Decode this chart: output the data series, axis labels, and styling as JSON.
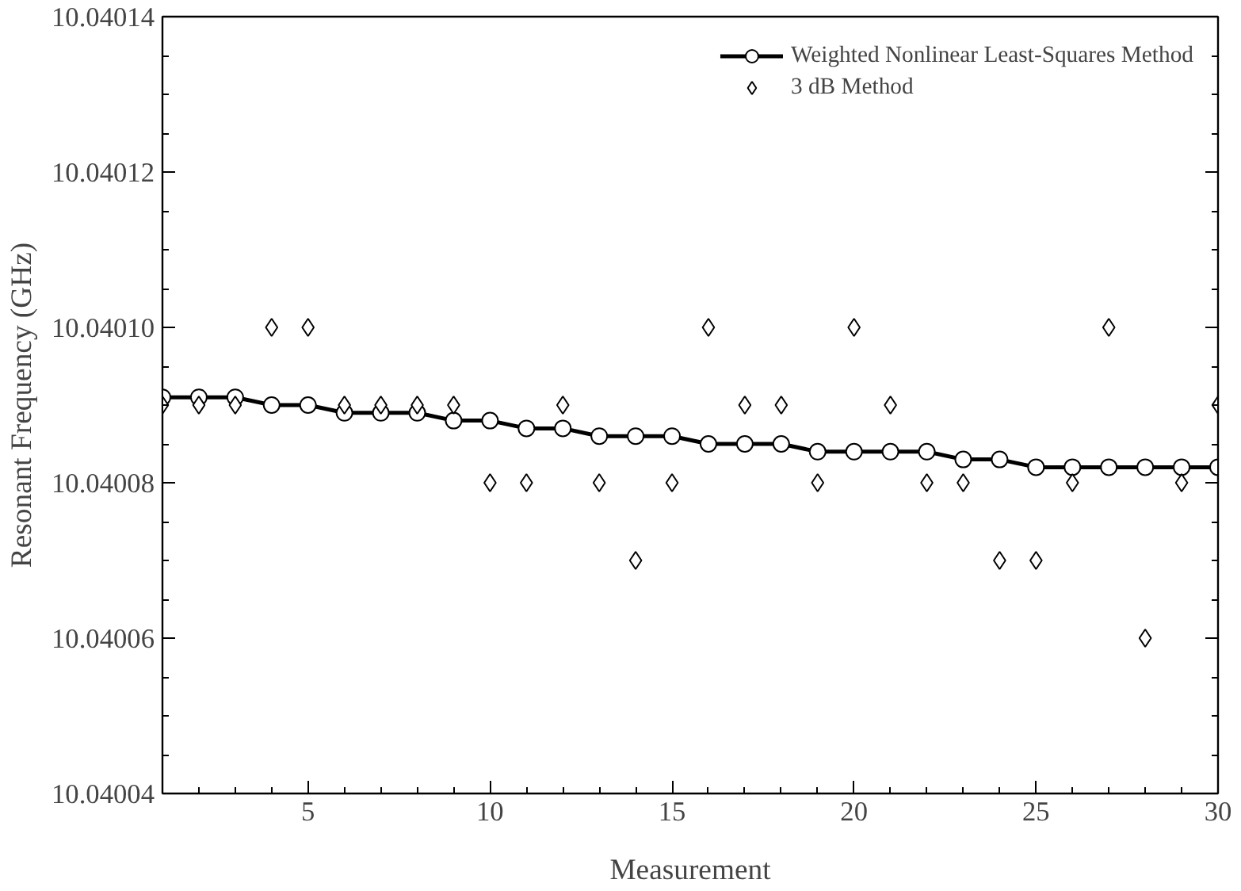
{
  "chart_data": {
    "type": "line",
    "xlabel": "Measurement",
    "ylabel": "Resonant Frequency (GHz)",
    "x": [
      1,
      2,
      3,
      4,
      5,
      6,
      7,
      8,
      9,
      10,
      11,
      12,
      13,
      14,
      15,
      16,
      17,
      18,
      19,
      20,
      21,
      22,
      23,
      24,
      25,
      26,
      27,
      28,
      29,
      30
    ],
    "series": [
      {
        "name": "Weighted Nonlinear Least-Squares Method",
        "marker": "circle",
        "line_style": "solid",
        "color": "#000000",
        "values": [
          10.040091,
          10.040091,
          10.040091,
          10.04009,
          10.04009,
          10.040089,
          10.040089,
          10.040089,
          10.040088,
          10.040088,
          10.040087,
          10.040087,
          10.040086,
          10.040086,
          10.040086,
          10.040085,
          10.040085,
          10.040085,
          10.040084,
          10.040084,
          10.040084,
          10.040084,
          10.040083,
          10.040083,
          10.040082,
          10.040082,
          10.040082,
          10.040082,
          10.040082,
          10.040082
        ]
      },
      {
        "name": "3 dB Method",
        "type": "scatter",
        "marker": "diamond",
        "color": "#000000",
        "values": [
          10.04009,
          10.04009,
          10.04009,
          10.0401,
          10.0401,
          10.04009,
          10.04009,
          10.04009,
          10.04009,
          10.04008,
          10.04008,
          10.04009,
          10.04008,
          10.04007,
          10.04008,
          10.0401,
          10.04009,
          10.04009,
          10.04008,
          10.0401,
          10.04009,
          10.04008,
          10.04008,
          10.04007,
          10.04007,
          10.04008,
          10.0401,
          10.04006,
          10.04008,
          10.04009
        ]
      }
    ],
    "xlim": [
      1,
      30
    ],
    "xticks": [
      5,
      10,
      15,
      20,
      25,
      30
    ],
    "ylim": [
      10.04004,
      10.04014
    ],
    "yticks": [
      {
        "value": 10.04004,
        "label": "10.04004"
      },
      {
        "value": 10.04006,
        "label": "10.04006"
      },
      {
        "value": 10.04008,
        "label": "10.04008"
      },
      {
        "value": 10.0401,
        "label": "10.04010"
      },
      {
        "value": 10.04012,
        "label": "10.04012"
      },
      {
        "value": 10.04014,
        "label": "10.04014"
      }
    ],
    "grid": false,
    "legend": "top right"
  }
}
